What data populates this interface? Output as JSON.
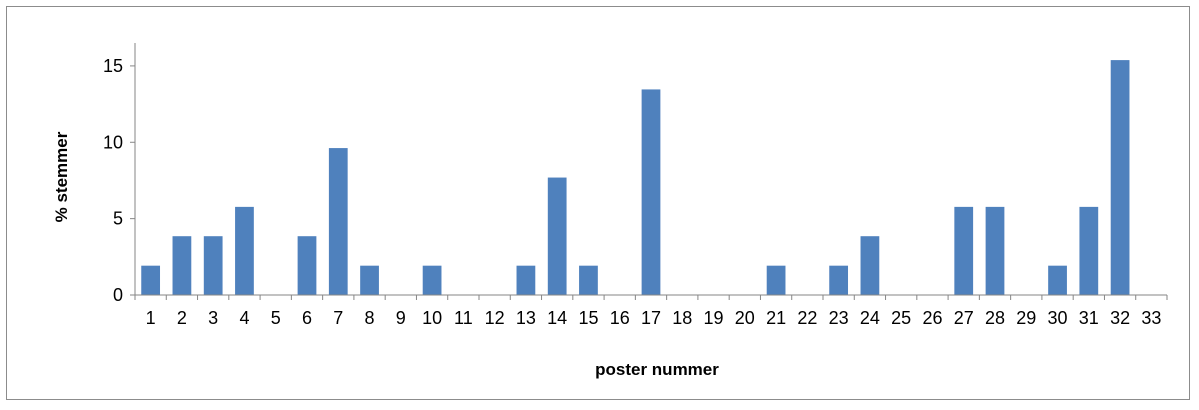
{
  "chart_data": {
    "type": "bar",
    "title": "",
    "xlabel": "poster nummer",
    "ylabel": "% stemmer",
    "categories": [
      "1",
      "2",
      "3",
      "4",
      "5",
      "6",
      "7",
      "8",
      "9",
      "10",
      "11",
      "12",
      "13",
      "14",
      "15",
      "16",
      "17",
      "18",
      "19",
      "20",
      "21",
      "22",
      "23",
      "24",
      "25",
      "26",
      "27",
      "28",
      "29",
      "30",
      "31",
      "32",
      "33"
    ],
    "values": [
      1.92,
      3.85,
      3.85,
      5.77,
      0,
      3.85,
      9.62,
      1.92,
      0,
      1.92,
      0,
      0,
      1.92,
      7.69,
      1.92,
      0,
      13.46,
      0,
      0,
      0,
      1.92,
      0,
      1.92,
      3.85,
      0,
      0,
      5.77,
      5.77,
      0,
      1.92,
      5.77,
      15.38,
      0
    ],
    "ylim": [
      0,
      16.5
    ],
    "yticks": [
      0,
      5,
      10,
      15
    ],
    "grid": false,
    "legend": "none",
    "bar_color": "#4f81bd"
  }
}
